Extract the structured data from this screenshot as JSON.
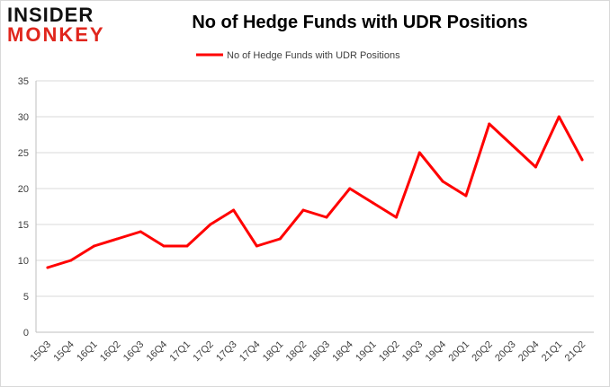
{
  "brand": {
    "logo_line1": "INSIDER",
    "logo_line2": "MONKEY"
  },
  "colors": {
    "series_line": "#ff0000",
    "gridline": "#d9d9d9",
    "axis_text": "#404040",
    "logo_red": "#e0261d"
  },
  "chart_data": {
    "type": "line",
    "title": "No of Hedge Funds with UDR Positions",
    "xlabel": "",
    "ylabel": "",
    "legend_position": "top-center",
    "grid": true,
    "ylim": [
      0,
      35
    ],
    "yticks": [
      0,
      5,
      10,
      15,
      20,
      25,
      30,
      35
    ],
    "categories": [
      "15Q3",
      "15Q4",
      "16Q1",
      "16Q2",
      "16Q3",
      "16Q4",
      "17Q1",
      "17Q2",
      "17Q3",
      "17Q4",
      "18Q1",
      "18Q2",
      "18Q3",
      "18Q4",
      "19Q1",
      "19Q2",
      "19Q3",
      "19Q4",
      "20Q1",
      "20Q2",
      "20Q3",
      "20Q4",
      "21Q1",
      "21Q2"
    ],
    "series": [
      {
        "name": "No of Hedge Funds with UDR Positions",
        "values": [
          9,
          10,
          12,
          13,
          14,
          12,
          12,
          15,
          17,
          12,
          13,
          17,
          16,
          20,
          18,
          16,
          25,
          21,
          19,
          29,
          26,
          23,
          30,
          24
        ]
      }
    ]
  }
}
